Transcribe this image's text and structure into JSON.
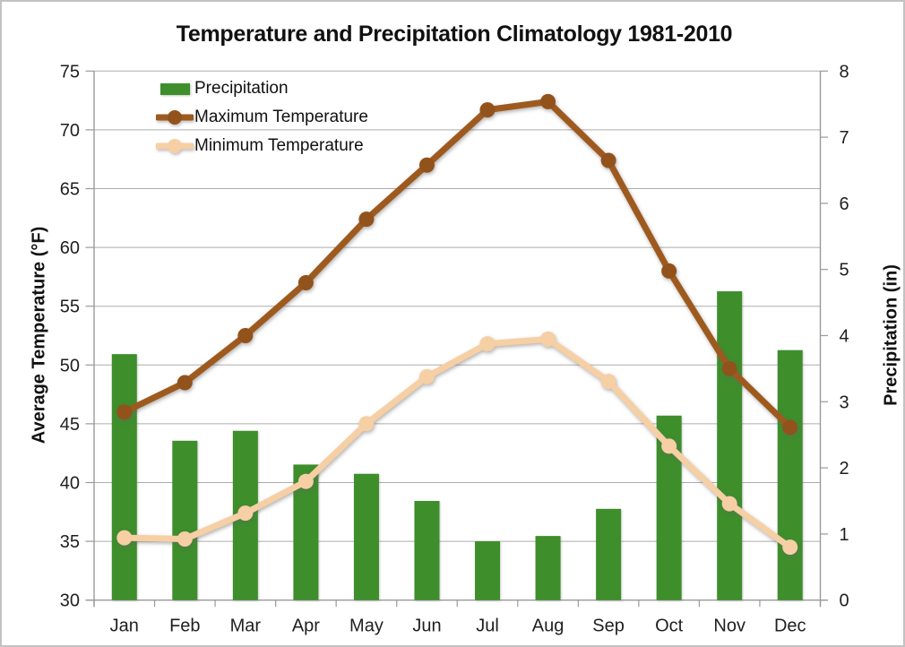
{
  "title": "Temperature and Precipitation Climatology 1981-2010",
  "chart_data": {
    "type": "combo-bar-line",
    "categories": [
      "Jan",
      "Feb",
      "Mar",
      "Apr",
      "May",
      "Jun",
      "Jul",
      "Aug",
      "Sep",
      "Oct",
      "Nov",
      "Dec"
    ],
    "series": [
      {
        "name": "Precipitation",
        "type": "bar",
        "axis": "right",
        "values": [
          3.72,
          2.41,
          2.56,
          2.05,
          1.91,
          1.5,
          0.89,
          0.97,
          1.38,
          2.79,
          4.67,
          3.78
        ]
      },
      {
        "name": "Maximum Temperature",
        "type": "line",
        "axis": "left",
        "values": [
          46.0,
          48.5,
          52.5,
          57.0,
          62.4,
          67.0,
          71.7,
          72.4,
          67.4,
          58.0,
          49.7,
          44.7
        ]
      },
      {
        "name": "Minimum Temperature",
        "type": "line",
        "axis": "left",
        "values": [
          35.3,
          35.2,
          37.4,
          40.1,
          45.0,
          49.0,
          51.8,
          52.2,
          48.6,
          43.1,
          38.2,
          34.5
        ]
      }
    ],
    "left_axis": {
      "label": "Average Temperature (°F)",
      "min": 30,
      "max": 75,
      "step": 5
    },
    "right_axis": {
      "label": "Precipitation (in)",
      "min": 0,
      "max": 8,
      "step": 1
    },
    "grid": "horizontal gridlines at left-axis ticks",
    "legend_position": "top-left inside plot area"
  },
  "colors": {
    "bar_green": "#3E8E2C",
    "max_line_brown": "#9E5A1E",
    "max_marker_brown": "#92521B",
    "min_line_peach": "#F6CFA4",
    "gridline_gray": "#ADADAD",
    "axis_gray": "#9A9A9A",
    "text_dark": "#1F1F1F"
  }
}
